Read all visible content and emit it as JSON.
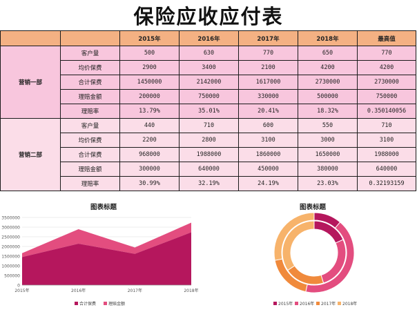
{
  "page_title": "保险应收应付表",
  "table": {
    "headers": [
      "",
      "",
      "2015年",
      "2016年",
      "2017年",
      "2018年",
      "最高值"
    ],
    "groups": [
      {
        "name": "营销一部",
        "rows": [
          {
            "metric": "客户量",
            "values": [
              "500",
              "630",
              "770",
              "650",
              "770"
            ]
          },
          {
            "metric": "均价保费",
            "values": [
              "2900",
              "3400",
              "2100",
              "4200",
              "4200"
            ]
          },
          {
            "metric": "合计保费",
            "values": [
              "1450000",
              "2142000",
              "1617000",
              "2730000",
              "2730000"
            ]
          },
          {
            "metric": "理赔金额",
            "values": [
              "200000",
              "750000",
              "330000",
              "500000",
              "750000"
            ]
          },
          {
            "metric": "理赔率",
            "values": [
              "13.79%",
              "35.01%",
              "20.41%",
              "18.32%",
              "0.350140056"
            ]
          }
        ]
      },
      {
        "name": "营销二部",
        "rows": [
          {
            "metric": "客户量",
            "values": [
              "440",
              "710",
              "600",
              "550",
              "710"
            ]
          },
          {
            "metric": "均价保费",
            "values": [
              "2200",
              "2800",
              "3100",
              "3000",
              "3100"
            ]
          },
          {
            "metric": "合计保费",
            "values": [
              "968000",
              "1988000",
              "1860000",
              "1650000",
              "1988000"
            ]
          },
          {
            "metric": "理赔金额",
            "values": [
              "300000",
              "640000",
              "450000",
              "380000",
              "640000"
            ]
          },
          {
            "metric": "理赔率",
            "values": [
              "30.99%",
              "32.19%",
              "24.19%",
              "23.03%",
              "0.32193159"
            ]
          }
        ]
      }
    ]
  },
  "colors": {
    "dark_magenta": "#b5175d",
    "pink": "#e34d7f",
    "orange": "#f08a3c",
    "light_orange": "#f7b36b",
    "header_orange": "#f4b183",
    "group1_pink": "#f8c6dd",
    "group2_pink": "#fbdde8"
  },
  "chart_data": [
    {
      "type": "area",
      "title": "图表标题",
      "categories": [
        "2015年",
        "2016年",
        "2017年",
        "2018年"
      ],
      "stacked": true,
      "series": [
        {
          "name": "合计保费",
          "values": [
            1450000,
            2142000,
            1617000,
            2730000
          ],
          "color": "#b5175d"
        },
        {
          "name": "理赔金额",
          "values": [
            200000,
            750000,
            330000,
            500000
          ],
          "color": "#e34d7f"
        }
      ],
      "ylim": [
        0,
        3500000
      ],
      "yticks": [
        "0",
        "500000",
        "1000000",
        "1500000",
        "2000000",
        "2500000",
        "3000000",
        "3500000"
      ],
      "grid": true,
      "legend": "bottom"
    },
    {
      "type": "pie",
      "subtype": "doughnut",
      "title": "图表标题",
      "categories": [
        "2015年",
        "2016年",
        "2017年",
        "2018年"
      ],
      "rings": [
        {
          "name": "合计保费",
          "values": [
            1450000,
            2142000,
            1617000,
            2730000
          ]
        },
        {
          "name": "理赔金额",
          "values": [
            200000,
            750000,
            330000,
            500000
          ]
        }
      ],
      "slice_colors": [
        "#b5175d",
        "#e34d7f",
        "#f08a3c",
        "#f7b36b"
      ],
      "legend": "bottom"
    }
  ]
}
